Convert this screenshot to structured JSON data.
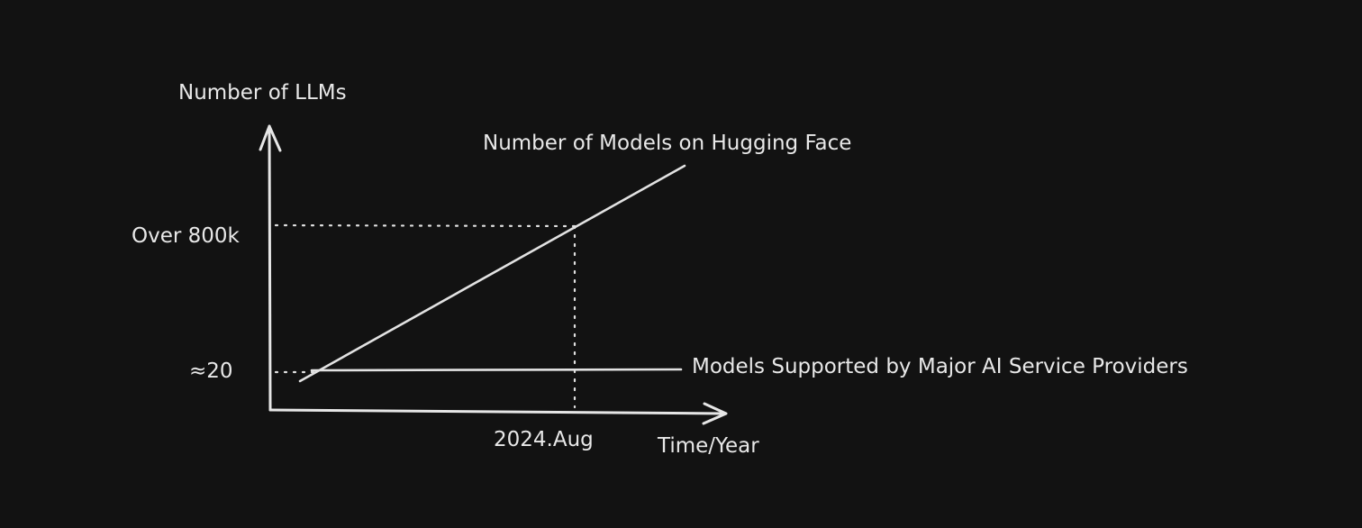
{
  "diagram": {
    "y_axis_label": "Number of LLMs",
    "x_axis_label": "Time/Year",
    "y_markers": {
      "high": "Over 800k",
      "low": "≈20"
    },
    "x_marker": "2024.Aug",
    "series": {
      "hugging_face": "Number of Models on Hugging Face",
      "providers": "Models Supported by Major AI Service Providers"
    }
  }
}
